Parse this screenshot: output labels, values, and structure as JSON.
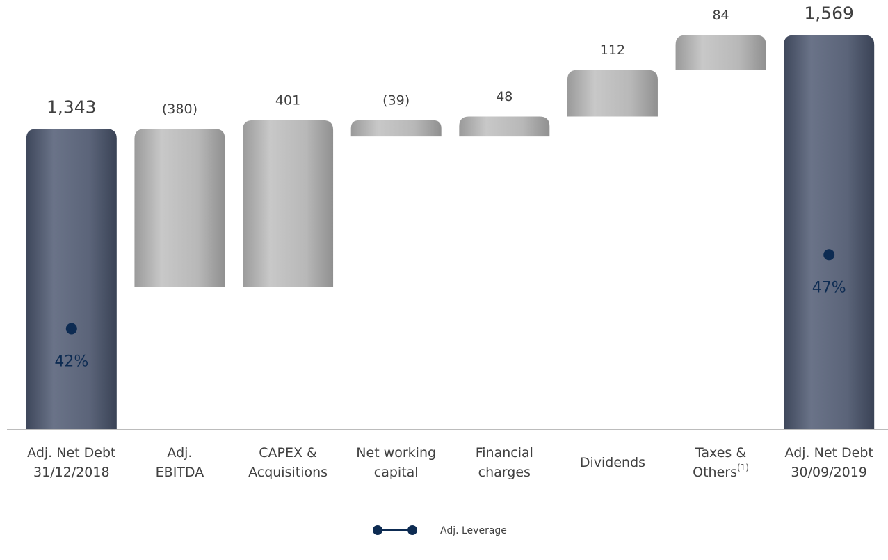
{
  "chart_data": {
    "type": "waterfall",
    "categories": [
      [
        "Adj. Net Debt",
        "31/12/2018"
      ],
      [
        "Adj.",
        "EBITDA"
      ],
      [
        "CAPEX &",
        "Acquisitions"
      ],
      [
        "Net working",
        "capital"
      ],
      [
        "Financial",
        "charges"
      ],
      [
        "Dividends"
      ],
      [
        "Taxes &",
        "Others"
      ],
      [
        "Adj. Net Debt",
        "30/09/2019"
      ]
    ],
    "category_notes": [
      null,
      null,
      null,
      null,
      null,
      null,
      "(1)",
      null
    ],
    "values": [
      1343,
      -380,
      401,
      -39,
      48,
      112,
      84,
      1569
    ],
    "value_labels": [
      "1,343",
      "(380)",
      "401",
      "(39)",
      "48",
      "112",
      "84",
      "1,569"
    ],
    "totals": [
      true,
      false,
      false,
      false,
      false,
      false,
      false,
      true
    ],
    "total_color": "#5b6479",
    "step_color": "#b3b3b3",
    "ylim": [
      620,
      1620
    ],
    "y2lim": [
      35.2,
      63.3
    ],
    "series": [
      {
        "name": "Adj. Leverage",
        "type": "line",
        "axis": "y2",
        "color": "#0d2b52",
        "values": [
          42,
          null,
          null,
          null,
          null,
          null,
          null,
          47
        ],
        "value_labels": [
          "42%",
          null,
          null,
          null,
          null,
          null,
          null,
          "47%"
        ]
      }
    ],
    "legend": "bottom"
  }
}
